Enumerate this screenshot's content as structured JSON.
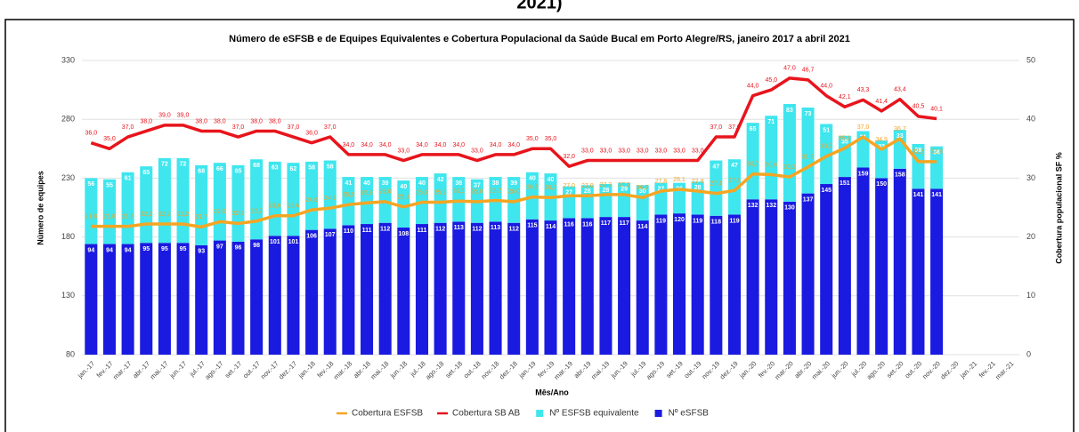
{
  "chart_data": {
    "type": "bar",
    "header": "2021)",
    "title": "Número de eSFSB e de Equipes Equivalentes e Cobertura Populacional da Saúde Bucal em Porto Alegre/RS, janeiro 2017 a abril 2021",
    "y_label": "Número de equipes",
    "y2_label": "Cobertura populacional SF %",
    "x_label": "Mês/Ano",
    "categories": [
      "jan.-17",
      "fev.-17",
      "mar.-17",
      "abr.-17",
      "mai.-17",
      "jun.-17",
      "jul.-17",
      "ago.-17",
      "set.-17",
      "out.-17",
      "nov.-17",
      "dez.-17",
      "jan.-18",
      "fev.-18",
      "mar.-18",
      "abr.-18",
      "mai.-18",
      "jun.-18",
      "jul.-18",
      "ago.-18",
      "set.-18",
      "out.-18",
      "nov.-18",
      "dez.-18",
      "jan.-19",
      "fev.-19",
      "mar.-19",
      "abr.-19",
      "mai.-19",
      "jun.-19",
      "jul.-19",
      "ago.-19",
      "set.-19",
      "out.-19",
      "nov.-19",
      "dez.-19",
      "jan.-20",
      "fev.-20",
      "mar.-20",
      "abr.-20",
      "mai.-20",
      "jun.-20",
      "jul.-20",
      "ago.-20",
      "set.-20",
      "out.-20",
      "nov.-20",
      "dez.-20",
      "jan.-21",
      "fev.-21",
      "mar.-21"
    ],
    "ylim": [
      80,
      330
    ],
    "yticks": [
      80,
      130,
      180,
      230,
      280,
      330
    ],
    "y2lim": [
      0,
      50
    ],
    "y2ticks": [
      0,
      10,
      20,
      30,
      40,
      50
    ],
    "series": [
      {
        "name": "Nº eSFSB",
        "kind": "bar",
        "color": "#1a1ae0",
        "values": [
          94,
          94,
          94,
          95,
          95,
          95,
          93,
          97,
          96,
          98,
          101,
          101,
          106,
          107,
          110,
          111,
          112,
          108,
          111,
          112,
          113,
          112,
          113,
          112,
          115,
          114,
          116,
          116,
          117,
          117,
          114,
          119,
          120,
          119,
          118,
          119,
          132,
          132,
          130,
          137,
          145,
          151,
          159,
          150,
          158,
          141,
          141,
          null,
          null,
          null,
          null
        ]
      },
      {
        "name": "Nº ESFSB equivalente",
        "kind": "bar",
        "color": "#3fe6ee",
        "values": [
          56,
          55,
          61,
          65,
          72,
          72,
          68,
          66,
          65,
          68,
          63,
          62,
          58,
          58,
          41,
          40,
          39,
          40,
          40,
          42,
          38,
          37,
          38,
          39,
          40,
          40,
          27,
          28,
          28,
          29,
          30,
          27,
          26,
          28,
          47,
          47,
          65,
          71,
          83,
          73,
          51,
          35,
          31,
          32,
          33,
          38,
          36,
          null,
          null,
          null,
          null
        ]
      },
      {
        "name": "Cobertura ESFSB",
        "kind": "line",
        "axis": "y2",
        "color": "#f5a524",
        "values": [
          21.8,
          21.8,
          21.8,
          22.2,
          22.2,
          22.2,
          21.7,
          22.6,
          22.3,
          22.7,
          23.6,
          23.6,
          24.6,
          24.9,
          25.5,
          25.8,
          26.0,
          25.1,
          25.9,
          25.9,
          26.1,
          26.0,
          26.2,
          26.0,
          26.8,
          26.7,
          27.0,
          27.0,
          27.2,
          27.2,
          26.7,
          27.8,
          28.1,
          27.8,
          27.4,
          27.9,
          30.7,
          30.6,
          30.2,
          31.9,
          33.7,
          35.1,
          37.0,
          34.9,
          36.7,
          32.8,
          32.8,
          null,
          null,
          null,
          null
        ],
        "value_labels": [
          "21,8",
          "21,8",
          "21,8",
          "22,2",
          "22,2",
          "22,2",
          "21,7",
          "22,6",
          "22,3",
          "22,7",
          "23,6",
          "23,6",
          "24,6",
          "24,9",
          "25,5",
          "25,8",
          "26,0",
          "25,1",
          "25,9",
          "25,9",
          "26,1",
          "26,0",
          "26,2",
          "26,0",
          "26,8",
          "26,7",
          "27,0",
          "27,0",
          "27,2",
          "27,2",
          "26,7",
          "27,8",
          "28,1",
          "27,8",
          "27,4",
          "27,9",
          "30,7",
          "30,6",
          "30,2",
          "31,9",
          "33,7",
          "35,1",
          "37,0",
          "34,9",
          "36,7",
          "32,8",
          "32,8",
          null,
          null,
          null,
          null
        ]
      },
      {
        "name": "Cobertura SB AB",
        "kind": "line",
        "axis": "y2",
        "color": "#e8141c",
        "values": [
          36.0,
          35.0,
          37.0,
          38.0,
          39.0,
          39.0,
          38.0,
          38.0,
          37.0,
          38.0,
          38.0,
          37.0,
          36.0,
          37.0,
          34.0,
          34.0,
          34.0,
          33.0,
          34.0,
          34.0,
          34.0,
          33.0,
          34.0,
          34.0,
          35.0,
          35.0,
          32.0,
          33.0,
          33.0,
          33.0,
          33.0,
          33.0,
          33.0,
          33.0,
          37.0,
          37.0,
          44.0,
          45.0,
          47.0,
          46.7,
          44.0,
          42.1,
          43.3,
          41.4,
          43.4,
          40.5,
          40.1,
          null,
          null,
          null,
          null
        ],
        "value_labels": [
          "36,0",
          "35,0",
          "37,0",
          "38,0",
          "39,0",
          "39,0",
          "38,0",
          "38,0",
          "37,0",
          "38,0",
          "38,0",
          "37,0",
          "36,0",
          "37,0",
          "34,0",
          "34,0",
          "34,0",
          "33,0",
          "34,0",
          "34,0",
          "34,0",
          "33,0",
          "34,0",
          "34,0",
          "35,0",
          "35,0",
          "32,0",
          "33,0",
          "33,0",
          "33,0",
          "33,0",
          "33,0",
          "33,0",
          "33,0",
          "37,0",
          "37,0",
          "44,0",
          "45,0",
          "47,0",
          "46,7",
          "44,0",
          "42,1",
          "43,3",
          "41,4",
          "43,4",
          "40,5",
          "40,1",
          null,
          null,
          null,
          null
        ]
      }
    ],
    "legend_order": [
      2,
      3,
      1,
      0
    ],
    "legend": "bottom"
  }
}
